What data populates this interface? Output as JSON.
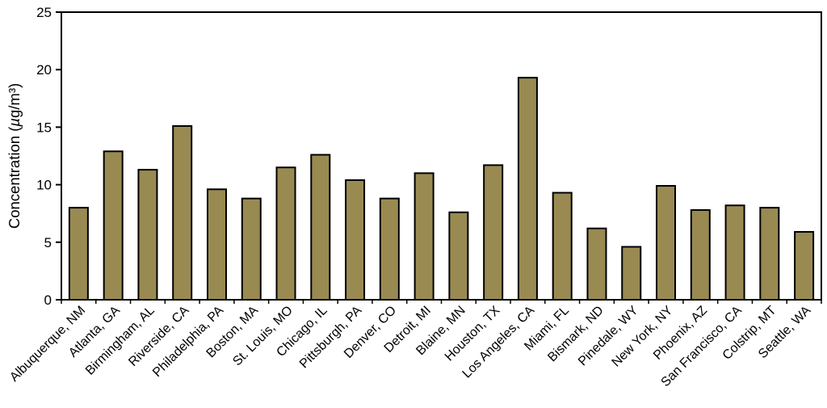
{
  "chart_data": {
    "type": "bar",
    "ylabel": "Concentration (µg/m³)",
    "xlabel": "",
    "ylim": [
      0,
      25
    ],
    "yticks": [
      0,
      5,
      10,
      15,
      20,
      25
    ],
    "grid": false,
    "legend_position": "none",
    "bar_color": "#998A52",
    "bar_border_color": "#000000",
    "axis_color": "#000000",
    "categories": [
      "Albuquerque, NM",
      "Atlanta, GA",
      "Birmingham, AL",
      "Riverside, CA",
      "Philadelphia, PA",
      "Boston, MA",
      "St. Louis, MO",
      "Chicago, IL",
      "Pittsburgh, PA",
      "Denver, CO",
      "Detroit, MI",
      "Blaine, MN",
      "Houston, TX",
      "Los Angeles, CA",
      "Miami, FL",
      "Bismark, ND",
      "Pinedale, WY",
      "New York, NY",
      "Phoenix, AZ",
      "San Francisco, CA",
      "Colstrip, MT",
      "Seattle, WA"
    ],
    "values": [
      8.0,
      12.9,
      11.3,
      15.1,
      9.6,
      8.8,
      11.5,
      12.6,
      10.4,
      8.8,
      11.0,
      7.6,
      11.7,
      19.3,
      9.3,
      6.2,
      4.6,
      9.9,
      7.8,
      8.2,
      8.0,
      5.9
    ]
  }
}
